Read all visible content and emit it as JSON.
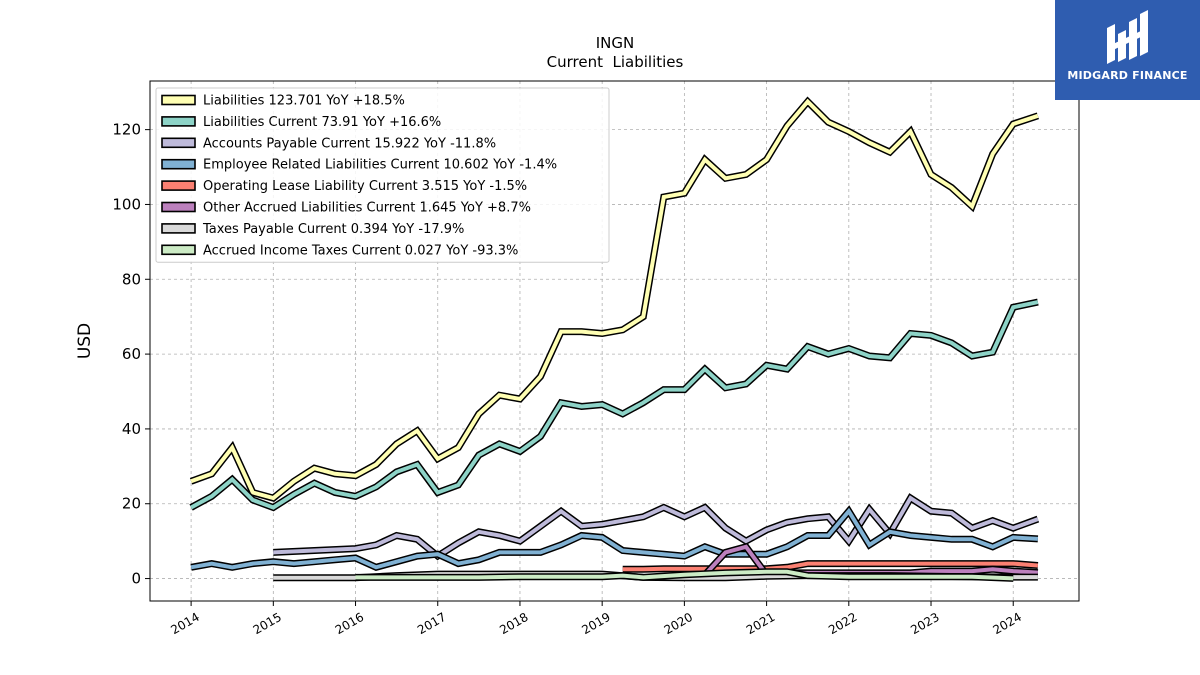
{
  "brand": {
    "name": "MIDGARD FINANCE",
    "logo_color": "#2f5db0"
  },
  "chart_data": {
    "type": "line",
    "title": "INGN",
    "subtitle": "Current  Liabilities",
    "xlabel": "",
    "ylabel": "USD",
    "xlim": [
      2013.5,
      2024.8
    ],
    "ylim": [
      -6,
      133
    ],
    "y_ticks": [
      0,
      20,
      40,
      60,
      80,
      100,
      120
    ],
    "x_ticks": [
      "2014",
      "2015",
      "2016",
      "2017",
      "2018",
      "2019",
      "2020",
      "2021",
      "2022",
      "2023",
      "2024"
    ],
    "grid": true,
    "legend_position": "top-left",
    "series": [
      {
        "name": "Liabilities",
        "legend": "Liabilities  123.701 YoY +18.5%",
        "color": "#ffffb3",
        "x": [
          2014.0,
          2014.25,
          2014.5,
          2014.75,
          2015.0,
          2015.25,
          2015.5,
          2015.75,
          2016.0,
          2016.25,
          2016.5,
          2016.75,
          2017.0,
          2017.25,
          2017.5,
          2017.75,
          2018.0,
          2018.25,
          2018.5,
          2018.75,
          2019.0,
          2019.25,
          2019.5,
          2019.75,
          2020.0,
          2020.25,
          2020.5,
          2020.75,
          2021.0,
          2021.25,
          2021.5,
          2021.75,
          2022.0,
          2022.25,
          2022.5,
          2022.75,
          2023.0,
          2023.25,
          2023.5,
          2023.75,
          2024.0,
          2024.3
        ],
        "values": [
          26,
          28,
          35,
          23,
          21.5,
          26,
          29.5,
          28,
          27.5,
          30.5,
          36,
          39.5,
          32,
          35,
          44,
          49,
          48,
          54,
          66,
          66,
          65.5,
          66.5,
          70,
          102,
          103,
          112,
          107,
          108,
          112,
          121,
          127.5,
          122,
          119.5,
          116.5,
          114,
          119.5,
          108,
          104.5,
          99.5,
          113.5,
          121.5,
          123.7
        ]
      },
      {
        "name": "Liabilities Current",
        "legend": "Liabilities Current  73.91 YoY +16.6%",
        "color": "#8dd3c7",
        "x": [
          2014.0,
          2014.25,
          2014.5,
          2014.75,
          2015.0,
          2015.25,
          2015.5,
          2015.75,
          2016.0,
          2016.25,
          2016.5,
          2016.75,
          2017.0,
          2017.25,
          2017.5,
          2017.75,
          2018.0,
          2018.25,
          2018.5,
          2018.75,
          2019.0,
          2019.25,
          2019.5,
          2019.75,
          2020.0,
          2020.25,
          2020.5,
          2020.75,
          2021.0,
          2021.25,
          2021.5,
          2021.75,
          2022.0,
          2022.25,
          2022.5,
          2022.75,
          2023.0,
          2023.25,
          2023.5,
          2023.75,
          2024.0,
          2024.3
        ],
        "values": [
          19,
          22,
          26.5,
          21,
          19,
          22.5,
          25.5,
          23,
          22,
          24.5,
          28.5,
          30.5,
          23,
          25,
          33,
          36,
          34,
          38,
          47,
          46,
          46.5,
          44,
          47,
          50.5,
          50.5,
          56,
          51,
          52,
          57,
          56,
          62,
          60,
          61.5,
          59.5,
          59,
          65.5,
          65,
          63,
          59.5,
          60.5,
          72.5,
          73.9
        ]
      },
      {
        "name": "Accounts Payable Current",
        "legend": "Accounts Payable Current  15.922 YoY -11.8%",
        "color": "#bebada",
        "x": [
          2015.0,
          2015.5,
          2016.0,
          2016.25,
          2016.5,
          2016.75,
          2017.0,
          2017.25,
          2017.5,
          2017.75,
          2018.0,
          2018.25,
          2018.5,
          2018.75,
          2019.0,
          2019.25,
          2019.5,
          2019.75,
          2020.0,
          2020.25,
          2020.5,
          2020.75,
          2021.0,
          2021.25,
          2021.5,
          2021.75,
          2022.0,
          2022.25,
          2022.5,
          2022.75,
          2023.0,
          2023.25,
          2023.5,
          2023.75,
          2024.0,
          2024.3
        ],
        "values": [
          7,
          7.5,
          8,
          9,
          11.5,
          10.5,
          6,
          9.5,
          12.5,
          11.5,
          10,
          14,
          18,
          14,
          14.5,
          15.5,
          16.5,
          19,
          16.5,
          19,
          13.5,
          10,
          13,
          15,
          16,
          16.5,
          10,
          18.5,
          12,
          21.5,
          18,
          17.5,
          13.5,
          15.5,
          13.5,
          15.9
        ]
      },
      {
        "name": "Employee Related Liabilities Current",
        "legend": "Employee Related Liabilities Current  10.602 YoY -1.4%",
        "color": "#80b1d3",
        "x": [
          2014.0,
          2014.25,
          2014.5,
          2014.75,
          2015.0,
          2015.25,
          2015.5,
          2015.75,
          2016.0,
          2016.25,
          2016.5,
          2016.75,
          2017.0,
          2017.25,
          2017.5,
          2017.75,
          2018.0,
          2018.25,
          2018.5,
          2018.75,
          2019.0,
          2019.25,
          2019.5,
          2019.75,
          2020.0,
          2020.25,
          2020.5,
          2020.75,
          2021.0,
          2021.25,
          2021.5,
          2021.75,
          2022.0,
          2022.25,
          2022.5,
          2022.75,
          2023.0,
          2023.25,
          2023.5,
          2023.75,
          2024.0,
          2024.3
        ],
        "values": [
          3,
          4,
          3,
          4,
          4.5,
          4,
          4.5,
          5,
          5.5,
          3,
          4.5,
          6,
          6.5,
          4,
          5,
          7,
          7,
          7,
          9,
          11.5,
          11,
          7.5,
          7,
          6.5,
          6,
          8.5,
          6.5,
          6.5,
          6.5,
          8.5,
          11.5,
          11.5,
          18,
          9,
          12.5,
          11.5,
          11,
          10.5,
          10.5,
          8.5,
          11,
          10.6
        ]
      },
      {
        "name": "Operating Lease Liability Current",
        "legend": "Operating Lease Liability Current  3.515 YoY -1.5%",
        "color": "#fb8072",
        "x": [
          2019.25,
          2019.5,
          2019.75,
          2020.0,
          2020.25,
          2020.5,
          2020.75,
          2021.0,
          2021.25,
          2021.5,
          2021.75,
          2022.0,
          2022.25,
          2022.5,
          2022.75,
          2023.0,
          2023.25,
          2023.5,
          2023.75,
          2024.0,
          2024.3
        ],
        "values": [
          2.5,
          2.5,
          2.6,
          2.6,
          2.6,
          2.6,
          2.6,
          2.6,
          3,
          4,
          4,
          4,
          4,
          4,
          4,
          4,
          4,
          4,
          4,
          4,
          3.5
        ]
      },
      {
        "name": "Other Accrued Liabilities Current",
        "legend": "Other Accrued Liabilities Current  1.645 YoY +8.7%",
        "color": "#bc80bd",
        "x": [
          2020.25,
          2020.5,
          2020.75,
          2021.0,
          2021.25,
          2021.5,
          2021.75,
          2022.0,
          2022.25,
          2022.5,
          2022.75,
          2023.0,
          2023.25,
          2023.5,
          2023.75,
          2024.0,
          2024.3
        ],
        "values": [
          1,
          7,
          8.5,
          1,
          1.5,
          1.5,
          1.5,
          1.5,
          1.5,
          1.5,
          1.5,
          2,
          2,
          2,
          2.5,
          2,
          1.6
        ]
      },
      {
        "name": "Taxes Payable Current",
        "legend": "Taxes Payable Current  0.394 YoY -17.9%",
        "color": "#d9d9d9",
        "x": [
          2015.0,
          2015.5,
          2016.0,
          2016.5,
          2017.0,
          2017.5,
          2018.0,
          2018.5,
          2019.0,
          2019.5,
          2020.0,
          2020.5,
          2021.0,
          2021.5,
          2022.0,
          2022.5,
          2023.0,
          2023.5,
          2024.0,
          2024.3
        ],
        "values": [
          0.2,
          0.2,
          0.2,
          0.8,
          1.2,
          1.2,
          1.2,
          1.2,
          1.2,
          0.3,
          0.2,
          0.2,
          0.6,
          0.8,
          0.8,
          0.8,
          0.6,
          0.5,
          0.4,
          0.4
        ]
      },
      {
        "name": "Accrued Income Taxes Current",
        "legend": "Accrued Income Taxes Current  0.027 YoY -93.3%",
        "color": "#ccebc5",
        "x": [
          2016.0,
          2016.5,
          2017.0,
          2017.5,
          2018.0,
          2018.5,
          2019.0,
          2019.25,
          2019.5,
          2020.0,
          2020.5,
          2021.0,
          2021.25,
          2021.5,
          2022.0,
          2022.5,
          2023.0,
          2023.5,
          2024.0
        ],
        "values": [
          0.3,
          0.3,
          0.3,
          0.3,
          0.5,
          0.5,
          0.5,
          0.8,
          0.3,
          1,
          1.5,
          1.8,
          1.8,
          0.8,
          0.5,
          0.5,
          0.5,
          0.5,
          0.03
        ]
      }
    ]
  }
}
